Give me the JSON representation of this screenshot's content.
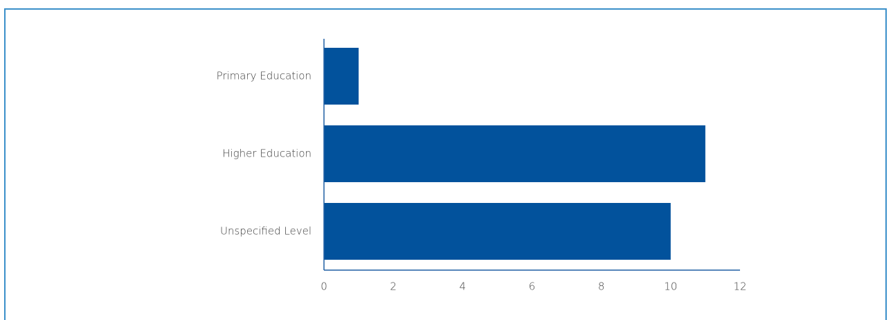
{
  "chart_data": {
    "type": "bar",
    "orientation": "horizontal",
    "title": "",
    "xlabel": "",
    "ylabel": "",
    "categories": [
      "Primary Education",
      "Higher Education",
      "Unspecified Level"
    ],
    "values": [
      1,
      11,
      10
    ],
    "xlim": [
      0,
      12
    ],
    "x_ticks": [
      0,
      2,
      4,
      6,
      8,
      10,
      12
    ],
    "grid": false,
    "legend": "none",
    "bar_color": "#02529c",
    "axis_color": "#1f5fa3",
    "frame_color": "#3a8fc9"
  }
}
